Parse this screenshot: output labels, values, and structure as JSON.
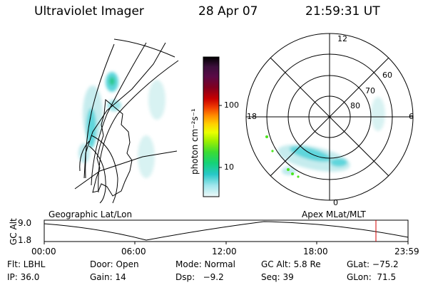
{
  "header": {
    "title": "Ultraviolet Imager",
    "date": "28 Apr 07",
    "time": "21:59:31 UT"
  },
  "colorbar": {
    "unit_label": "photon cm⁻²s⁻¹",
    "ticks": [
      "100",
      "10"
    ],
    "colors": [
      "#000000",
      "#3c0f3c",
      "#5a0a46",
      "#82001e",
      "#b40000",
      "#e61e00",
      "#ff7800",
      "#ffa000",
      "#ffdc00",
      "#eaff00",
      "#a0f000",
      "#4be61e",
      "#14d25a",
      "#14c8b4",
      "#64d2dc",
      "#b9ecf0",
      "#e6f7f7"
    ]
  },
  "polar_plot": {
    "mlt_labels": {
      "top": "12",
      "left": "18",
      "right": "6",
      "bottom": "0"
    },
    "lat_labels": [
      "60",
      "70",
      "80"
    ]
  },
  "geo_plot": {
    "label": "Geographic Lat/Lon"
  },
  "apex_label": "Apex MLat/MLT",
  "altitude_plot": {
    "ylabel": "GC Alt",
    "yticks": [
      "9.0",
      "1.8"
    ],
    "xticks": [
      "00:00",
      "06:00",
      "12:00",
      "18:00",
      "23:59"
    ],
    "marker_color": "#d40000"
  },
  "info": {
    "row1": {
      "filter": "Flt: LBHL",
      "door": "Door: Open",
      "mode": "Mode: Normal",
      "gc_alt": "GC Alt: 5.8 Re",
      "glat": "GLat: −75.2"
    },
    "row2": {
      "ip": "IP: 36.0",
      "gain": "Gain: 14",
      "dsp": "Dsp:   −9.2",
      "seq": "Seq: 39",
      "glon": "GLon:  71.5"
    }
  }
}
